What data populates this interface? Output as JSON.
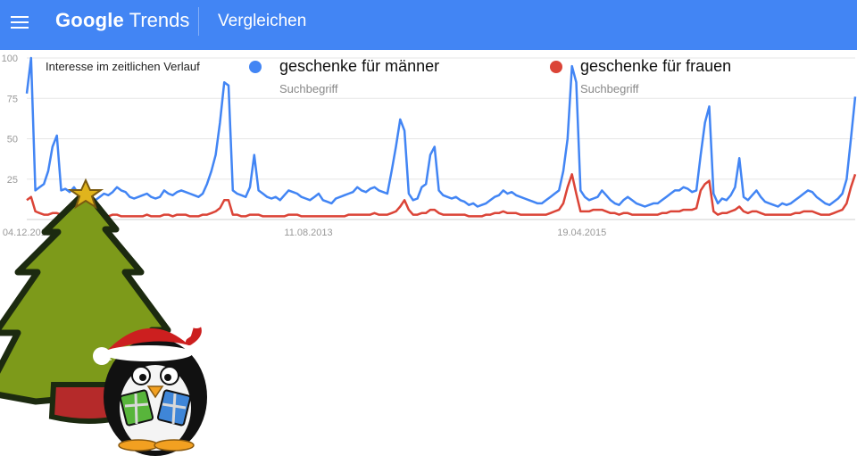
{
  "header": {
    "logo_word1": "Google",
    "logo_word2": "Trends",
    "page_title": "Vergleichen"
  },
  "colors": {
    "header_bg": "#4285f4",
    "series1": "#4285f4",
    "series2": "#db4437"
  },
  "icons": {
    "menu": "hamburger-menu-icon"
  },
  "chart_data": {
    "type": "line",
    "title": "Interesse im zeitlichen Verlauf",
    "ylim": [
      0,
      100
    ],
    "yticks": [
      "100",
      "75",
      "50",
      "25"
    ],
    "xticks": [
      "04.12.2011",
      "11.08.2013",
      "19.04.2015"
    ],
    "grid": true,
    "legend_placement": "top",
    "series": [
      {
        "name": "geschenke für männer",
        "subtitle": "Suchbegriff",
        "values": [
          78,
          100,
          18,
          20,
          22,
          30,
          45,
          52,
          18,
          19,
          17,
          20,
          16,
          14,
          15,
          13,
          12,
          14,
          16,
          15,
          17,
          20,
          18,
          17,
          14,
          13,
          14,
          15,
          16,
          14,
          13,
          14,
          18,
          16,
          15,
          17,
          18,
          17,
          16,
          15,
          14,
          16,
          22,
          30,
          40,
          60,
          85,
          83,
          18,
          16,
          15,
          14,
          20,
          40,
          18,
          16,
          14,
          13,
          14,
          12,
          15,
          18,
          17,
          16,
          14,
          13,
          12,
          14,
          16,
          12,
          11,
          10,
          13,
          14,
          15,
          16,
          17,
          20,
          18,
          17,
          19,
          20,
          18,
          17,
          16,
          30,
          45,
          62,
          55,
          16,
          12,
          13,
          20,
          22,
          40,
          45,
          18,
          15,
          14,
          13,
          14,
          12,
          11,
          9,
          10,
          8,
          9,
          10,
          12,
          14,
          15,
          18,
          16,
          17,
          15,
          14,
          13,
          12,
          11,
          10,
          10,
          12,
          14,
          16,
          18,
          30,
          50,
          95,
          85,
          18,
          14,
          12,
          13,
          14,
          18,
          15,
          12,
          10,
          9,
          12,
          14,
          12,
          10,
          9,
          8,
          9,
          10,
          10,
          12,
          14,
          16,
          18,
          18,
          20,
          19,
          17,
          18,
          40,
          60,
          70,
          16,
          10,
          13,
          12,
          15,
          20,
          38,
          14,
          12,
          15,
          18,
          14,
          11,
          10,
          9,
          8,
          10,
          9,
          10,
          12,
          14,
          16,
          18,
          17,
          14,
          12,
          10,
          9,
          11,
          13,
          16,
          25,
          50,
          76
        ],
        "color": "#4285f4"
      },
      {
        "name": "geschenke für frauen",
        "subtitle": "Suchbegriff",
        "values": [
          12,
          14,
          5,
          4,
          3,
          3,
          4,
          4,
          3,
          3,
          2,
          3,
          2,
          2,
          3,
          2,
          2,
          3,
          3,
          2,
          3,
          3,
          2,
          2,
          2,
          2,
          2,
          2,
          3,
          2,
          2,
          2,
          3,
          3,
          2,
          3,
          3,
          3,
          2,
          2,
          2,
          3,
          3,
          4,
          5,
          7,
          12,
          12,
          3,
          3,
          2,
          2,
          3,
          3,
          3,
          2,
          2,
          2,
          2,
          2,
          2,
          3,
          3,
          3,
          2,
          2,
          2,
          2,
          2,
          2,
          2,
          2,
          2,
          2,
          2,
          3,
          3,
          3,
          3,
          3,
          3,
          4,
          3,
          3,
          3,
          4,
          5,
          8,
          12,
          6,
          3,
          3,
          4,
          4,
          6,
          6,
          4,
          3,
          3,
          3,
          3,
          3,
          3,
          2,
          2,
          2,
          2,
          3,
          3,
          4,
          4,
          5,
          4,
          4,
          4,
          3,
          3,
          3,
          3,
          3,
          3,
          3,
          4,
          5,
          6,
          10,
          20,
          28,
          16,
          5,
          5,
          5,
          6,
          6,
          6,
          5,
          4,
          4,
          3,
          4,
          4,
          3,
          3,
          3,
          3,
          3,
          3,
          3,
          4,
          4,
          5,
          5,
          5,
          6,
          6,
          6,
          7,
          18,
          22,
          24,
          5,
          3,
          4,
          4,
          5,
          6,
          8,
          5,
          4,
          5,
          5,
          4,
          3,
          3,
          3,
          3,
          3,
          3,
          3,
          4,
          4,
          5,
          5,
          5,
          4,
          3,
          3,
          3,
          4,
          5,
          6,
          10,
          20,
          28
        ],
        "color": "#db4437"
      }
    ]
  }
}
